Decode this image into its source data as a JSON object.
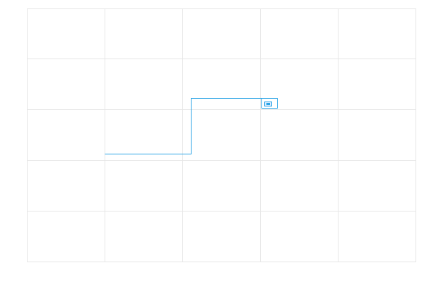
{
  "diagram": {
    "background_color": "#ffffff",
    "grid": {
      "visible": true,
      "color": "#e6e6e6",
      "columns": 5,
      "rows": 5
    },
    "connector": {
      "color": "#29a3e6",
      "style": "orthogonal",
      "segments": 3
    },
    "node": {
      "shape": "nested-rectangle",
      "color": "#29a3e6",
      "fill": "#dcecff"
    }
  }
}
